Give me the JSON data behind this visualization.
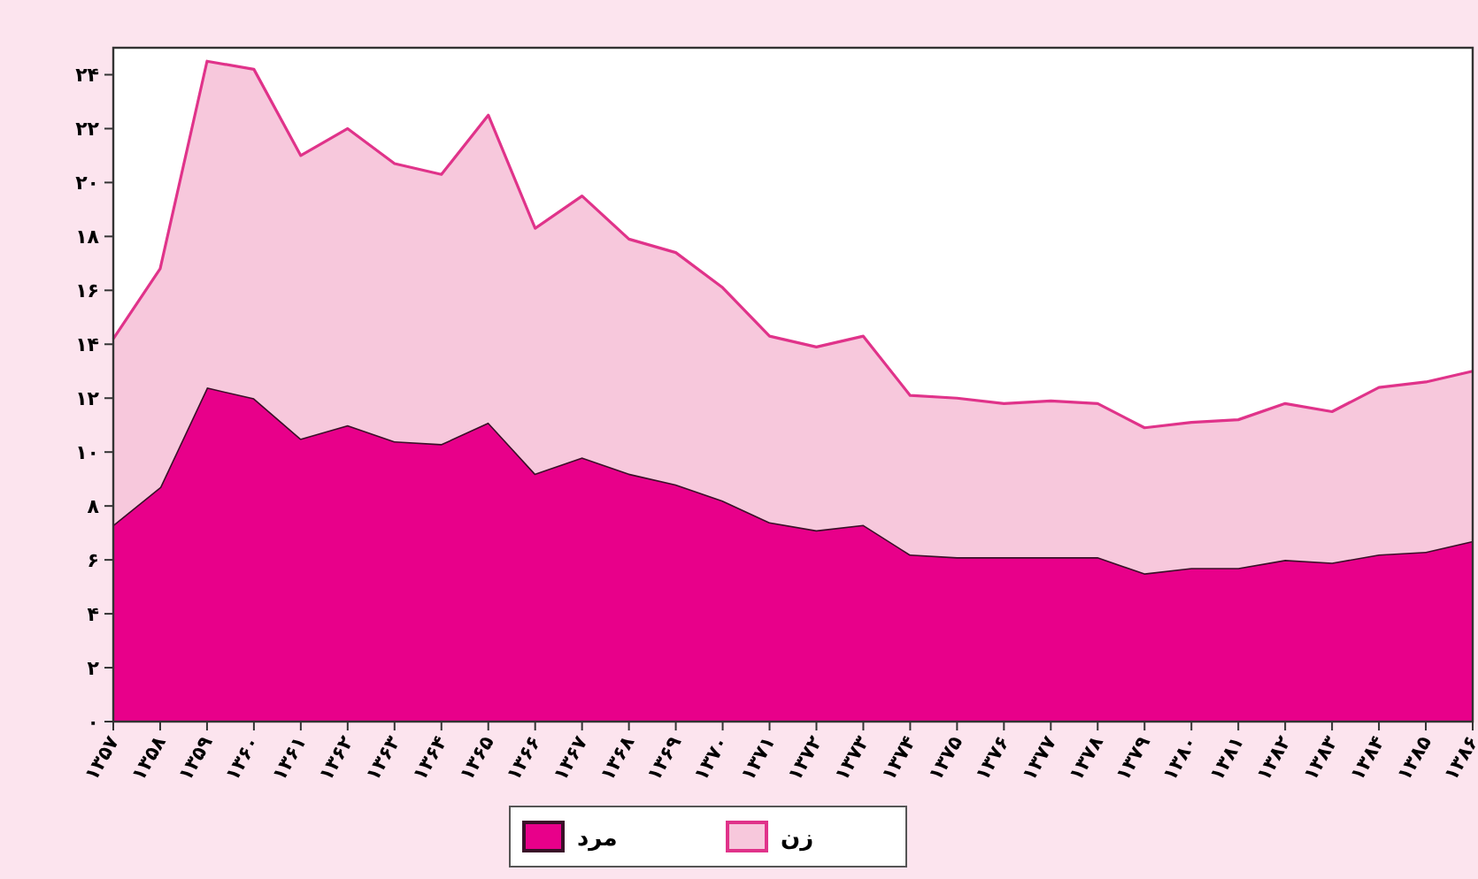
{
  "chart_data": {
    "type": "area",
    "stacked": true,
    "legend": "bottom",
    "grid": false,
    "categories": [
      "۱۳۵۷",
      "۱۳۵۸",
      "۱۳۵۹",
      "۱۳۶۰",
      "۱۳۶۱",
      "۱۳۶۲",
      "۱۳۶۳",
      "۱۳۶۴",
      "۱۳۶۵",
      "۱۳۶۶",
      "۱۳۶۷",
      "۱۳۶۸",
      "۱۳۶۹",
      "۱۳۷۰",
      "۱۳۷۱",
      "۱۳۷۲",
      "۱۳۷۳",
      "۱۳۷۴",
      "۱۳۷۵",
      "۱۳۷۶",
      "۱۳۷۷",
      "۱۳۷۸",
      "۱۳۷۹",
      "۱۳۸۰",
      "۱۳۸۱",
      "۱۳۸۲",
      "۱۳۸۳",
      "۱۳۸۴",
      "۱۳۸۵",
      "۱۳۸۶"
    ],
    "ylim": [
      0,
      25
    ],
    "yticks": [
      {
        "value": 0,
        "label": "۰"
      },
      {
        "value": 2,
        "label": "۲"
      },
      {
        "value": 4,
        "label": "۴"
      },
      {
        "value": 6,
        "label": "۶"
      },
      {
        "value": 8,
        "label": "۸"
      },
      {
        "value": 10,
        "label": "۱۰"
      },
      {
        "value": 12,
        "label": "۱۲"
      },
      {
        "value": 14,
        "label": "۱۴"
      },
      {
        "value": 16,
        "label": "۱۶"
      },
      {
        "value": 18,
        "label": "۱۸"
      },
      {
        "value": 20,
        "label": "۲۰"
      },
      {
        "value": 22,
        "label": "۲۲"
      },
      {
        "value": 24,
        "label": "۲۴"
      }
    ],
    "series": [
      {
        "name": "مرد",
        "color": "#e8008a",
        "values": [
          7.3,
          8.7,
          12.4,
          12.0,
          10.5,
          11.0,
          10.4,
          10.3,
          11.1,
          9.2,
          9.8,
          9.2,
          8.8,
          8.2,
          7.4,
          7.1,
          7.3,
          6.2,
          6.1,
          6.1,
          6.1,
          6.1,
          5.5,
          5.7,
          5.7,
          6.0,
          5.9,
          6.2,
          6.3,
          6.7
        ]
      },
      {
        "name": "زن",
        "color": "#f7c8dc",
        "values": [
          6.9,
          8.1,
          12.1,
          12.2,
          10.5,
          11.0,
          10.3,
          10.0,
          11.4,
          9.1,
          9.7,
          8.7,
          8.6,
          7.9,
          6.9,
          6.8,
          7.0,
          5.9,
          5.9,
          5.7,
          5.8,
          5.7,
          5.4,
          5.4,
          5.5,
          5.8,
          5.6,
          6.2,
          6.3,
          6.3
        ]
      }
    ]
  }
}
